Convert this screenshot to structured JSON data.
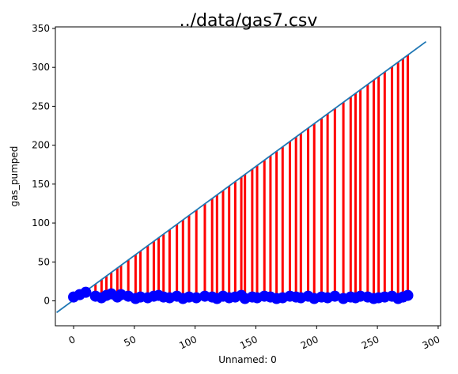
{
  "chart_data": {
    "type": "scatter",
    "title": "../data/gas7.csv",
    "xlabel": "Unnamed: 0",
    "ylabel": "gas_pumped",
    "xlim": [
      -15,
      302
    ],
    "ylim": [
      -32,
      352
    ],
    "xticks": [
      0,
      50,
      100,
      150,
      200,
      250,
      300
    ],
    "yticks": [
      0,
      50,
      100,
      150,
      200,
      250,
      300,
      350
    ],
    "grid": false,
    "legend": "none",
    "colors": {
      "line": "#1f77b4",
      "residuals": "#ff0000",
      "points": "#0000ff",
      "axes": "#000000"
    },
    "fit_line": {
      "x": [
        -14,
        290
      ],
      "y": [
        -15,
        333
      ]
    },
    "series": {
      "x": [
        0,
        5,
        10,
        18,
        23,
        27,
        31,
        36,
        39,
        45,
        51,
        55,
        61,
        66,
        70,
        74,
        79,
        85,
        90,
        95,
        101,
        108,
        114,
        118,
        123,
        128,
        133,
        138,
        141,
        147,
        151,
        157,
        162,
        167,
        172,
        178,
        183,
        187,
        193,
        198,
        204,
        209,
        215,
        222,
        228,
        232,
        236,
        242,
        247,
        251,
        256,
        262,
        267,
        271,
        275
      ],
      "y": [
        5,
        8,
        11,
        6,
        4,
        7,
        9,
        5,
        8,
        6,
        3,
        5,
        4,
        6,
        7,
        5,
        4,
        6,
        3,
        5,
        4,
        6,
        5,
        3,
        6,
        4,
        5,
        7,
        3,
        5,
        4,
        6,
        5,
        3,
        4,
        6,
        5,
        4,
        6,
        3,
        5,
        4,
        6,
        3,
        5,
        4,
        6,
        5,
        3,
        4,
        5,
        6,
        3,
        5,
        7
      ]
    }
  }
}
